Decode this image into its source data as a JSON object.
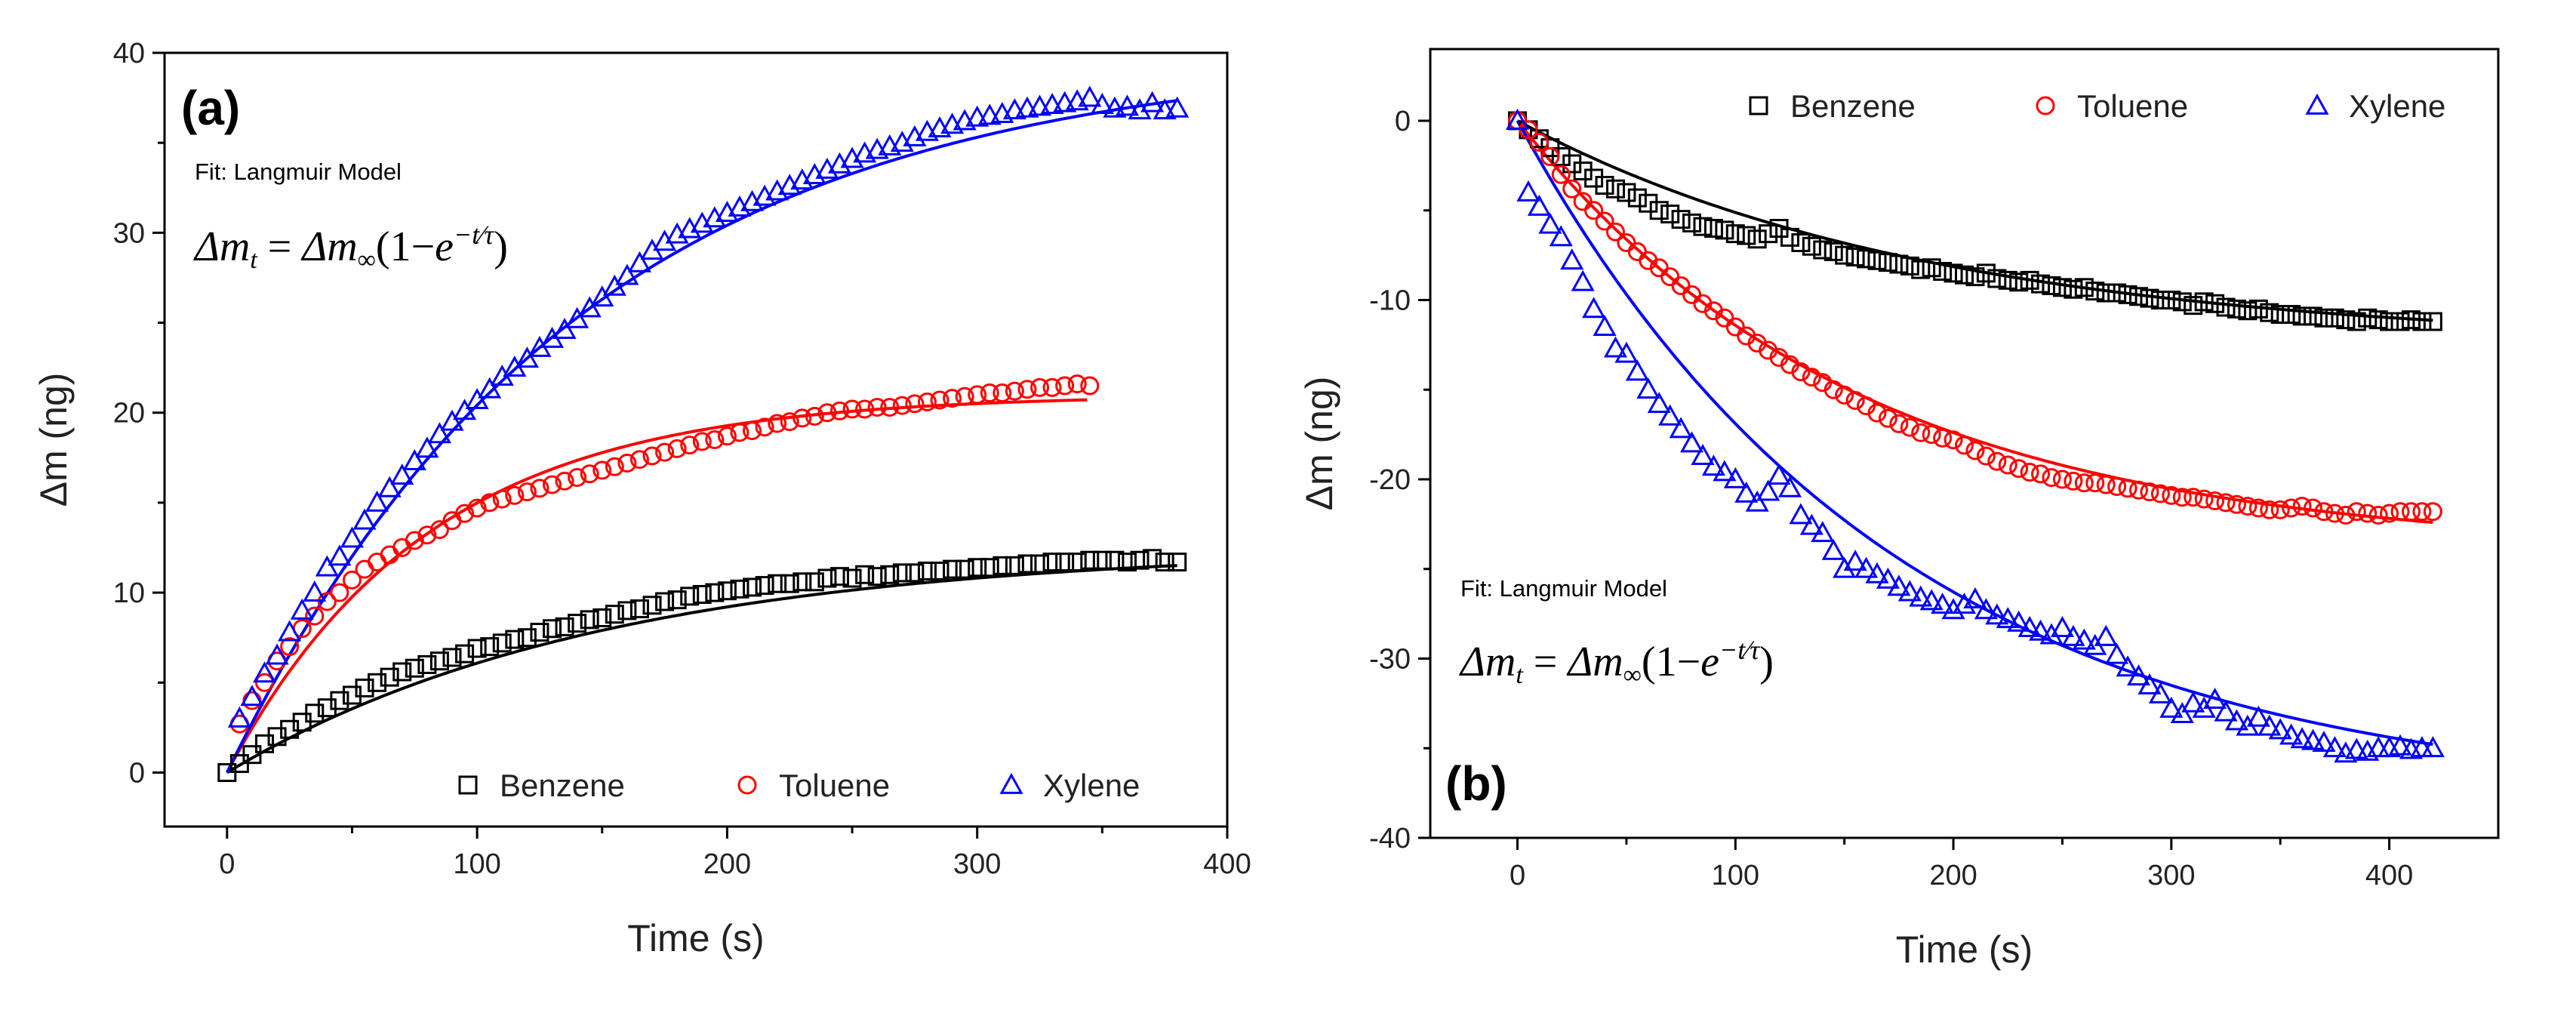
{
  "chart_data": [
    {
      "type": "scatter",
      "panel_label": "(a)",
      "xlabel": "Time (s)",
      "ylabel": "Δm (ng)",
      "xlim": [
        -25,
        400
      ],
      "ylim": [
        -3,
        40
      ],
      "xticks": [
        0,
        100,
        200,
        300,
        400
      ],
      "yticks": [
        0,
        10,
        20,
        30,
        40
      ],
      "grid": false,
      "legend_position": "bottom-right",
      "annotation": "Fit: Langmuir Model",
      "equation": {
        "lhs": "Δm",
        "lhs_sub": "t",
        "eq": "=",
        "rhs": "Δm",
        "rhs_sub": "∞",
        "paren": "(1−",
        "base": "e",
        "exp": "−t⁄τ",
        "close": ")"
      },
      "series": [
        {
          "name": "Benzene",
          "color": "#000000",
          "marker": "square",
          "fit": {
            "dm_inf": 12.5,
            "tau": 150,
            "t_max": 380
          },
          "x": [
            0,
            5,
            10,
            15,
            20,
            25,
            30,
            35,
            40,
            45,
            50,
            55,
            60,
            65,
            70,
            75,
            80,
            85,
            90,
            95,
            100,
            105,
            110,
            115,
            120,
            125,
            130,
            135,
            140,
            145,
            150,
            155,
            160,
            165,
            170,
            175,
            180,
            185,
            190,
            195,
            200,
            205,
            210,
            215,
            220,
            225,
            230,
            235,
            240,
            245,
            250,
            255,
            260,
            265,
            270,
            275,
            280,
            285,
            290,
            295,
            300,
            305,
            310,
            315,
            320,
            325,
            330,
            335,
            340,
            345,
            350,
            355,
            360,
            365,
            370,
            375,
            380
          ],
          "y": [
            0.0,
            0.5,
            1.0,
            1.6,
            2.0,
            2.4,
            2.8,
            3.3,
            3.6,
            4.0,
            4.3,
            4.7,
            5.0,
            5.3,
            5.6,
            5.8,
            6.0,
            6.2,
            6.4,
            6.6,
            6.9,
            7.0,
            7.2,
            7.4,
            7.5,
            7.8,
            8.0,
            8.1,
            8.3,
            8.5,
            8.6,
            8.8,
            9.0,
            9.1,
            9.3,
            9.5,
            9.6,
            9.8,
            9.9,
            10.0,
            10.1,
            10.2,
            10.3,
            10.4,
            10.5,
            10.5,
            10.6,
            10.6,
            10.8,
            10.9,
            10.8,
            11.0,
            10.9,
            11.0,
            11.1,
            11.1,
            11.2,
            11.2,
            11.3,
            11.3,
            11.4,
            11.4,
            11.5,
            11.5,
            11.6,
            11.6,
            11.7,
            11.7,
            11.7,
            11.8,
            11.8,
            11.8,
            11.7,
            11.8,
            11.9,
            11.7,
            11.7
          ]
        },
        {
          "name": "Toluene",
          "color": "#ff0000",
          "marker": "circle",
          "fit": {
            "dm_inf": 21.0,
            "tau": 80,
            "t_max": 345
          },
          "x": [
            5,
            10,
            15,
            20,
            25,
            30,
            35,
            40,
            45,
            50,
            55,
            60,
            65,
            70,
            75,
            80,
            85,
            90,
            95,
            100,
            105,
            110,
            115,
            120,
            125,
            130,
            135,
            140,
            145,
            150,
            155,
            160,
            165,
            170,
            175,
            180,
            185,
            190,
            195,
            200,
            205,
            210,
            215,
            220,
            225,
            230,
            235,
            240,
            245,
            250,
            255,
            260,
            265,
            270,
            275,
            280,
            285,
            290,
            295,
            300,
            305,
            310,
            315,
            320,
            325,
            330,
            335,
            340,
            345
          ],
          "y": [
            2.7,
            4.0,
            5.0,
            6.2,
            7.0,
            8.0,
            8.7,
            9.5,
            10.0,
            10.7,
            11.3,
            11.7,
            12.1,
            12.5,
            12.9,
            13.2,
            13.5,
            14.0,
            14.4,
            14.7,
            15.0,
            15.2,
            15.4,
            15.6,
            15.8,
            16.0,
            16.2,
            16.4,
            16.6,
            16.8,
            17.0,
            17.2,
            17.4,
            17.6,
            17.8,
            18.0,
            18.2,
            18.4,
            18.5,
            18.7,
            18.9,
            19.0,
            19.2,
            19.4,
            19.5,
            19.7,
            19.8,
            20.0,
            20.1,
            20.2,
            20.2,
            20.3,
            20.3,
            20.4,
            20.5,
            20.6,
            20.7,
            20.8,
            20.9,
            21.0,
            21.1,
            21.1,
            21.2,
            21.3,
            21.4,
            21.4,
            21.5,
            21.6,
            21.5
          ]
        },
        {
          "name": "Xylene",
          "color": "#0000ff",
          "marker": "triangle",
          "fit": {
            "dm_inf": 40.0,
            "tau": 140,
            "t_max": 380
          },
          "x": [
            5,
            10,
            15,
            20,
            25,
            30,
            35,
            40,
            45,
            50,
            55,
            60,
            65,
            70,
            75,
            80,
            85,
            90,
            95,
            100,
            105,
            110,
            115,
            120,
            125,
            130,
            135,
            140,
            145,
            150,
            155,
            160,
            165,
            170,
            175,
            180,
            185,
            190,
            195,
            200,
            205,
            210,
            215,
            220,
            225,
            230,
            235,
            240,
            245,
            250,
            255,
            260,
            265,
            270,
            275,
            280,
            285,
            290,
            295,
            300,
            305,
            310,
            315,
            320,
            325,
            330,
            335,
            340,
            345,
            350,
            355,
            360,
            365,
            370,
            375,
            380
          ],
          "y": [
            3.0,
            4.2,
            5.5,
            6.5,
            7.8,
            9.0,
            10.0,
            11.4,
            12.0,
            13.0,
            14.0,
            15.0,
            15.8,
            16.5,
            17.3,
            18.0,
            18.8,
            19.5,
            20.1,
            20.7,
            21.3,
            22.0,
            22.5,
            23.0,
            23.6,
            24.1,
            24.6,
            25.2,
            25.8,
            26.4,
            27.0,
            27.6,
            28.3,
            29.0,
            29.5,
            29.9,
            30.2,
            30.5,
            30.8,
            31.1,
            31.4,
            31.7,
            32.0,
            32.3,
            32.6,
            32.9,
            33.2,
            33.5,
            33.8,
            34.1,
            34.4,
            34.6,
            34.8,
            35.0,
            35.3,
            35.6,
            35.8,
            36.0,
            36.2,
            36.4,
            36.5,
            36.6,
            36.8,
            36.9,
            37.0,
            37.1,
            37.2,
            37.3,
            37.5,
            37.1,
            36.9,
            37.0,
            36.8,
            37.2,
            36.8,
            36.9
          ]
        }
      ]
    },
    {
      "type": "scatter",
      "panel_label": "(b)",
      "xlabel": "Time (s)",
      "ylabel": "Δm (ng)",
      "xlim": [
        -40,
        450
      ],
      "ylim": [
        -40,
        4
      ],
      "xticks": [
        0,
        100,
        200,
        300,
        400
      ],
      "yticks": [
        -40,
        -30,
        -20,
        -10,
        0
      ],
      "grid": false,
      "legend_position": "top-right",
      "annotation": "Fit: Langmuir Model",
      "equation": {
        "lhs": "Δm",
        "lhs_sub": "t",
        "eq": "=",
        "rhs": "Δm",
        "rhs_sub": "∞",
        "paren": "(1−",
        "base": "e",
        "exp": "−t⁄τ",
        "close": ")"
      },
      "series": [
        {
          "name": "Benzene",
          "color": "#000000",
          "marker": "square",
          "fit": {
            "dm_inf": -12.5,
            "tau": 190,
            "t_max": 420
          },
          "x": [
            0,
            5,
            10,
            15,
            20,
            25,
            30,
            35,
            40,
            45,
            50,
            55,
            60,
            65,
            70,
            75,
            80,
            85,
            90,
            95,
            100,
            105,
            110,
            115,
            120,
            125,
            130,
            135,
            140,
            145,
            150,
            155,
            160,
            165,
            170,
            175,
            180,
            185,
            190,
            195,
            200,
            205,
            210,
            215,
            220,
            225,
            230,
            235,
            240,
            245,
            250,
            255,
            260,
            265,
            270,
            275,
            280,
            285,
            290,
            295,
            300,
            305,
            310,
            315,
            320,
            325,
            330,
            335,
            340,
            345,
            350,
            355,
            360,
            365,
            370,
            375,
            380,
            385,
            390,
            395,
            400,
            405,
            410,
            415,
            420
          ],
          "y": [
            0,
            -0.5,
            -1.0,
            -1.5,
            -2.0,
            -2.4,
            -2.8,
            -3.2,
            -3.6,
            -3.8,
            -4.0,
            -4.3,
            -4.6,
            -5.0,
            -5.2,
            -5.5,
            -5.7,
            -5.9,
            -6.0,
            -6.1,
            -6.3,
            -6.4,
            -6.6,
            -6.3,
            -6.0,
            -6.5,
            -6.8,
            -7.0,
            -7.2,
            -7.3,
            -7.5,
            -7.6,
            -7.7,
            -7.8,
            -7.9,
            -8.0,
            -8.1,
            -8.3,
            -8.2,
            -8.4,
            -8.5,
            -8.6,
            -8.7,
            -8.5,
            -8.8,
            -8.9,
            -9.0,
            -8.9,
            -9.1,
            -9.2,
            -9.3,
            -9.4,
            -9.3,
            -9.5,
            -9.6,
            -9.6,
            -9.7,
            -9.8,
            -9.9,
            -10.0,
            -10.0,
            -10.1,
            -10.3,
            -10.1,
            -10.2,
            -10.4,
            -10.5,
            -10.6,
            -10.5,
            -10.7,
            -10.8,
            -10.8,
            -10.9,
            -10.9,
            -11.0,
            -11.0,
            -11.1,
            -11.2,
            -11.0,
            -11.1,
            -11.2,
            -11.2,
            -11.1,
            -11.2,
            -11.2
          ]
        },
        {
          "name": "Toluene",
          "color": "#ff0000",
          "marker": "circle",
          "fit": {
            "dm_inf": -24.0,
            "tau": 155,
            "t_max": 420
          },
          "x": [
            0,
            5,
            10,
            15,
            20,
            25,
            30,
            35,
            40,
            45,
            50,
            55,
            60,
            65,
            70,
            75,
            80,
            85,
            90,
            95,
            100,
            105,
            110,
            115,
            120,
            125,
            130,
            135,
            140,
            145,
            150,
            155,
            160,
            165,
            170,
            175,
            180,
            185,
            190,
            195,
            200,
            205,
            210,
            215,
            220,
            225,
            230,
            235,
            240,
            245,
            250,
            255,
            260,
            265,
            270,
            275,
            280,
            285,
            290,
            295,
            300,
            305,
            310,
            315,
            320,
            325,
            330,
            335,
            340,
            345,
            350,
            355,
            360,
            365,
            370,
            375,
            380,
            385,
            390,
            395,
            400,
            405,
            410,
            415,
            420
          ],
          "y": [
            0,
            -0.5,
            -1.2,
            -2.0,
            -3.0,
            -3.8,
            -4.5,
            -5.0,
            -5.6,
            -6.2,
            -6.8,
            -7.3,
            -7.8,
            -8.2,
            -8.7,
            -9.2,
            -9.7,
            -10.2,
            -10.6,
            -11.0,
            -11.5,
            -12.0,
            -12.4,
            -12.8,
            -13.2,
            -13.6,
            -14.0,
            -14.3,
            -14.6,
            -15.0,
            -15.3,
            -15.6,
            -15.9,
            -16.3,
            -16.6,
            -16.9,
            -17.1,
            -17.4,
            -17.5,
            -17.7,
            -17.8,
            -18.1,
            -18.4,
            -18.7,
            -19.0,
            -19.2,
            -19.4,
            -19.6,
            -19.7,
            -19.9,
            -20.0,
            -20.1,
            -20.2,
            -20.2,
            -20.3,
            -20.4,
            -20.5,
            -20.6,
            -20.7,
            -20.8,
            -20.9,
            -21.0,
            -21.0,
            -21.1,
            -21.2,
            -21.3,
            -21.4,
            -21.5,
            -21.6,
            -21.7,
            -21.7,
            -21.6,
            -21.5,
            -21.6,
            -21.8,
            -21.9,
            -22.0,
            -21.8,
            -21.9,
            -22.0,
            -21.9,
            -21.8,
            -21.8,
            -21.8,
            -21.8
          ]
        },
        {
          "name": "Xylene",
          "color": "#0000ff",
          "marker": "triangle",
          "fit": {
            "dm_inf": -38.0,
            "tau": 170,
            "t_max": 420
          },
          "x": [
            0,
            5,
            10,
            15,
            20,
            25,
            30,
            35,
            40,
            45,
            50,
            55,
            60,
            65,
            70,
            75,
            80,
            85,
            90,
            95,
            100,
            105,
            110,
            115,
            120,
            125,
            130,
            135,
            140,
            145,
            150,
            155,
            160,
            165,
            170,
            175,
            180,
            185,
            190,
            195,
            200,
            205,
            210,
            215,
            220,
            225,
            230,
            235,
            240,
            245,
            250,
            255,
            260,
            265,
            270,
            275,
            280,
            285,
            290,
            295,
            300,
            305,
            310,
            315,
            320,
            325,
            330,
            335,
            340,
            345,
            350,
            355,
            360,
            365,
            370,
            375,
            380,
            385,
            390,
            395,
            400,
            405,
            410,
            415,
            420
          ],
          "y": [
            0,
            -4.0,
            -4.8,
            -5.8,
            -6.5,
            -7.8,
            -9.0,
            -10.5,
            -11.5,
            -12.7,
            -13.0,
            -14.0,
            -15.0,
            -15.8,
            -16.5,
            -17.2,
            -18.0,
            -18.7,
            -19.3,
            -19.6,
            -20.0,
            -20.8,
            -21.3,
            -20.7,
            -19.8,
            -20.5,
            -22.0,
            -22.6,
            -23.0,
            -24.0,
            -25.0,
            -24.6,
            -25.0,
            -25.3,
            -25.6,
            -26.0,
            -26.3,
            -26.6,
            -26.8,
            -27.0,
            -27.3,
            -27.0,
            -26.7,
            -27.3,
            -27.6,
            -27.8,
            -28.0,
            -28.3,
            -28.5,
            -28.7,
            -28.3,
            -28.8,
            -29.0,
            -29.3,
            -28.8,
            -29.8,
            -30.5,
            -31.0,
            -31.5,
            -32.0,
            -32.8,
            -33.1,
            -32.5,
            -32.8,
            -32.3,
            -33.0,
            -33.5,
            -33.8,
            -33.3,
            -33.8,
            -34.0,
            -34.3,
            -34.5,
            -34.6,
            -34.7,
            -35.0,
            -35.3,
            -35.1,
            -35.2,
            -35.0,
            -35.0,
            -34.9,
            -35.1,
            -35.0,
            -35.0
          ]
        }
      ]
    }
  ]
}
